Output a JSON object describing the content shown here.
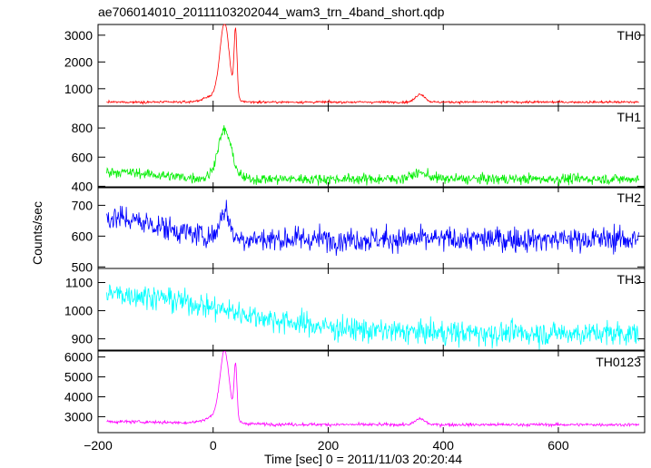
{
  "title": "ae706014010_20111103202044_wam3_trn_4band_short.qdp",
  "chart_data": {
    "type": "line",
    "title": "ae706014010_20111103202044_wam3_trn_4band_short.qdp",
    "xlabel": "Time [sec] 0 = 2011/11/03 20:20:44",
    "ylabel": "Counts/sec",
    "xlim": [
      -200,
      750
    ],
    "x_ticks": [
      -200,
      0,
      200,
      400,
      600
    ],
    "x_tick_labels": [
      "−200",
      "0",
      "200",
      "400",
      "600"
    ],
    "x_range_data": [
      -185,
      740
    ],
    "grid": false,
    "panels": [
      {
        "name": "TH0",
        "color": "#ff0000",
        "ylim": [
          350,
          3400
        ],
        "y_ticks": [
          1000,
          2000,
          3000
        ],
        "y_tick_labels": [
          "1000",
          "2000",
          "3000"
        ],
        "baseline": 500,
        "noise": 30,
        "features": [
          {
            "t": 20,
            "amp": 2700,
            "w": 8
          },
          {
            "t": 39,
            "amp": 2500,
            "w": 2.5
          },
          {
            "t": 10,
            "amp": 300,
            "w": 20
          },
          {
            "t": 360,
            "amp": 300,
            "w": 8
          }
        ]
      },
      {
        "name": "TH1",
        "color": "#00ee00",
        "ylim": [
          390,
          950
        ],
        "y_ticks": [
          400,
          600,
          800
        ],
        "y_tick_labels": [
          "400",
          "600",
          "800"
        ],
        "baseline": 450,
        "noise": 25,
        "features": [
          {
            "t": 20,
            "amp": 330,
            "w": 12
          },
          {
            "t": -185,
            "amp": 50,
            "w": 80
          },
          {
            "t": 360,
            "amp": 40,
            "w": 15
          }
        ]
      },
      {
        "name": "TH2",
        "color": "#0000ff",
        "ylim": [
          495,
          760
        ],
        "y_ticks": [
          500,
          600,
          700
        ],
        "y_tick_labels": [
          "500",
          "600",
          "700"
        ],
        "baseline": 590,
        "noise": 28,
        "features": [
          {
            "t": -185,
            "amp": 70,
            "w": 90
          },
          {
            "t": 20,
            "amp": 90,
            "w": 8
          }
        ]
      },
      {
        "name": "TH3",
        "color": "#00ffff",
        "ylim": [
          860,
          1150
        ],
        "y_ticks": [
          900,
          1000,
          1100
        ],
        "y_tick_labels": [
          "900",
          "1000",
          "1100"
        ],
        "baseline": 920,
        "noise": 30,
        "features": [
          {
            "t": -185,
            "amp": 140,
            "w": 200
          }
        ]
      },
      {
        "name": "TH0123",
        "color": "#ff00ff",
        "ylim": [
          2200,
          6300
        ],
        "y_ticks": [
          3000,
          4000,
          5000,
          6000
        ],
        "y_tick_labels": [
          "3000",
          "4000",
          "5000",
          "6000"
        ],
        "baseline": 2600,
        "noise": 55,
        "features": [
          {
            "t": 20,
            "amp": 3300,
            "w": 8
          },
          {
            "t": 39,
            "amp": 2700,
            "w": 2.5
          },
          {
            "t": 10,
            "amp": 400,
            "w": 20
          },
          {
            "t": 360,
            "amp": 300,
            "w": 8
          },
          {
            "t": -185,
            "amp": 150,
            "w": 150
          }
        ]
      }
    ]
  }
}
